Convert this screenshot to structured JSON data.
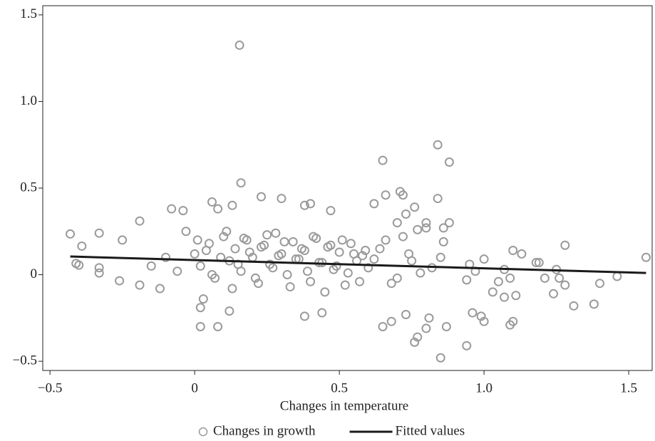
{
  "chart_data": {
    "type": "scatter",
    "x_label": "Changes in temperature",
    "xlim": [
      -0.525,
      1.581
    ],
    "ylim": [
      -0.553,
      1.553
    ],
    "xticks": [
      {
        "value": -0.5,
        "label": "−0.5"
      },
      0,
      0.5,
      {
        "value": 1,
        "label": "1.0"
      },
      1.5
    ],
    "yticks": [
      {
        "value": -0.5,
        "label": "−0.5"
      },
      0,
      0.5,
      {
        "value": 1,
        "label": "1.0"
      },
      1.5
    ],
    "legend": "bottom",
    "series": [
      {
        "name": "Changes in growth",
        "type": "scatter",
        "color": "#9a9a9a",
        "x": [
          0.155,
          0.84,
          0.88,
          0.65,
          0.16,
          0.71,
          0.72,
          0.66,
          0.84,
          0.4,
          0.38,
          0.23,
          0.3,
          0.06,
          0.08,
          0.47,
          0.13,
          0.62,
          0.76,
          -0.19,
          -0.08,
          -0.04,
          -0.43,
          -0.33,
          -0.39,
          -0.41,
          -0.4,
          -0.33,
          -0.33,
          -0.25,
          -0.26,
          -0.19,
          0.02,
          0.08,
          0.02,
          0.03,
          0.12,
          0.38,
          0.44,
          0.65,
          0.68,
          0.73,
          0.76,
          0.77,
          0.8,
          0.81,
          0.85,
          0.87,
          0.94,
          0.96,
          0.99,
          1.0,
          1.09,
          1.1,
          1.1,
          1.13,
          1.18,
          1.19,
          1.21,
          1.24,
          1.25,
          1.26,
          1.28,
          1.28,
          1.31,
          1.38,
          1.4,
          1.46,
          1.56,
          1.07,
          1.03,
          1.05,
          1.09,
          1.11,
          1.0,
          0.95,
          0.94,
          0.97,
          1.07,
          0.88,
          0.86,
          0.86,
          0.8,
          0.8,
          0.77,
          0.73,
          0.7,
          0.0,
          0.02,
          0.05,
          0.07,
          0.1,
          0.12,
          0.14,
          0.16,
          0.18,
          0.2,
          0.22,
          0.24,
          0.26,
          0.28,
          0.3,
          0.32,
          0.34,
          0.36,
          0.38,
          0.4,
          0.42,
          0.44,
          0.46,
          0.48,
          0.5,
          0.52,
          0.54,
          0.56,
          0.58,
          0.6,
          0.01,
          0.04,
          0.06,
          0.09,
          0.11,
          0.13,
          0.15,
          0.17,
          0.19,
          0.21,
          0.23,
          0.25,
          0.27,
          0.29,
          0.31,
          0.33,
          0.35,
          0.37,
          0.39,
          0.41,
          0.43,
          0.45,
          0.47,
          0.49,
          0.51,
          0.53,
          0.55,
          0.57,
          0.59,
          0.62,
          -0.1,
          -0.06,
          -0.03,
          -0.15,
          -0.12,
          0.64,
          0.68,
          0.72,
          0.75,
          0.78,
          0.66,
          0.7,
          0.74,
          0.82,
          0.85
        ],
        "values": [
          1.325,
          0.75,
          0.65,
          0.66,
          0.53,
          0.48,
          0.46,
          0.46,
          0.44,
          0.41,
          0.4,
          0.45,
          0.44,
          0.42,
          0.38,
          0.37,
          0.4,
          0.41,
          0.39,
          0.31,
          0.38,
          0.37,
          0.235,
          0.24,
          0.165,
          0.065,
          0.055,
          0.01,
          0.04,
          0.2,
          -0.035,
          -0.06,
          -0.3,
          -0.3,
          -0.19,
          -0.14,
          -0.21,
          -0.24,
          -0.22,
          -0.3,
          -0.27,
          -0.23,
          -0.39,
          -0.36,
          -0.31,
          -0.25,
          -0.48,
          -0.3,
          -0.41,
          -0.22,
          -0.24,
          -0.27,
          -0.29,
          -0.27,
          0.14,
          0.12,
          0.07,
          0.07,
          -0.02,
          -0.11,
          0.03,
          -0.02,
          -0.06,
          0.17,
          -0.18,
          -0.17,
          -0.05,
          -0.01,
          0.1,
          -0.13,
          -0.1,
          -0.04,
          -0.02,
          -0.12,
          0.09,
          0.06,
          -0.03,
          0.02,
          0.03,
          0.3,
          0.27,
          0.19,
          0.27,
          0.3,
          0.26,
          0.35,
          0.3,
          0.12,
          0.05,
          0.18,
          -0.02,
          0.22,
          0.08,
          0.15,
          0.02,
          0.2,
          0.1,
          -0.05,
          0.17,
          0.06,
          0.24,
          0.12,
          0.0,
          0.19,
          0.09,
          0.14,
          -0.04,
          0.21,
          0.07,
          0.16,
          0.03,
          0.13,
          -0.06,
          0.18,
          0.08,
          0.11,
          0.04,
          0.2,
          0.14,
          0.0,
          0.1,
          0.25,
          -0.08,
          0.06,
          0.21,
          0.13,
          -0.02,
          0.16,
          0.23,
          0.04,
          0.11,
          0.19,
          -0.07,
          0.09,
          0.15,
          0.02,
          0.22,
          0.07,
          -0.1,
          0.17,
          0.05,
          0.2,
          0.01,
          0.12,
          -0.04,
          0.14,
          0.09,
          0.1,
          0.02,
          0.25,
          0.05,
          -0.08,
          0.15,
          -0.05,
          0.22,
          0.08,
          0.01,
          0.2,
          -0.02,
          0.12,
          0.04,
          0.1
        ]
      },
      {
        "name": "Fitted values",
        "type": "line",
        "color": "#1a1a1a",
        "x": [
          -0.43,
          1.56
        ],
        "values": [
          0.105,
          0.01
        ]
      }
    ]
  }
}
